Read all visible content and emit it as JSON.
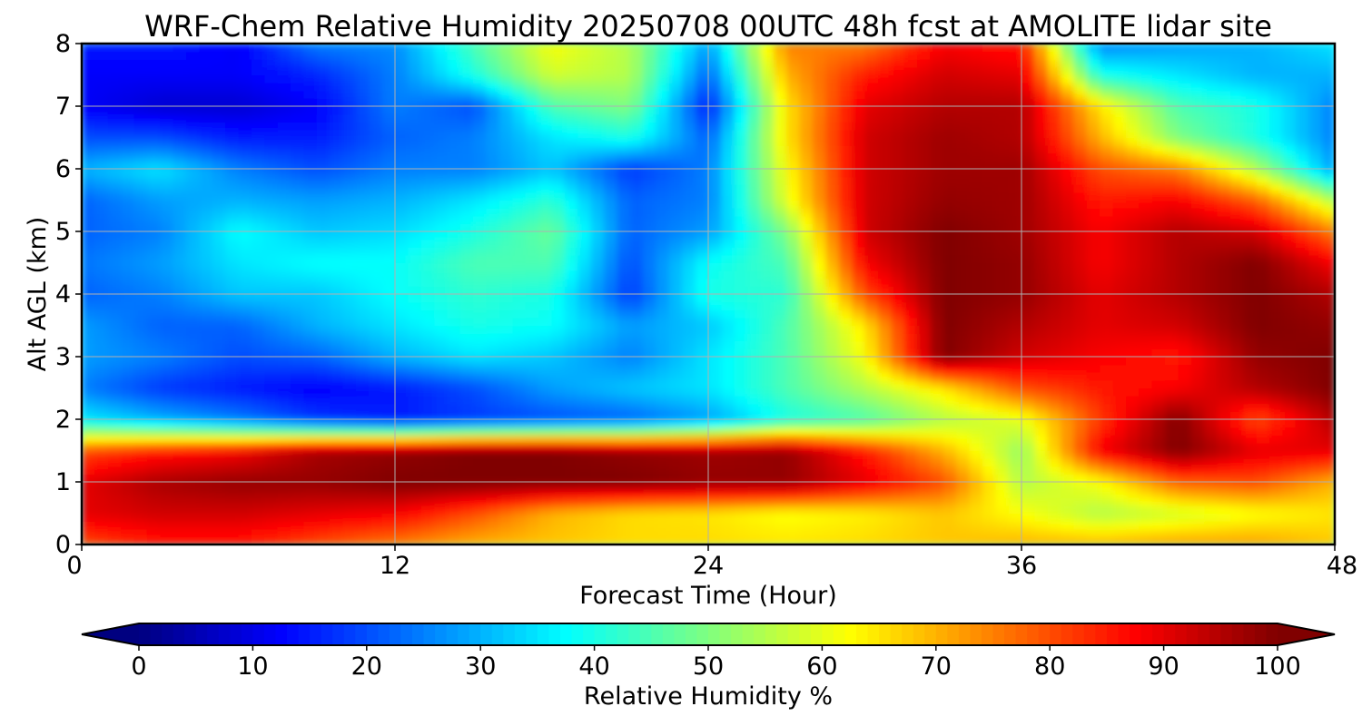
{
  "chart_data": {
    "type": "heatmap",
    "title": "WRF-Chem Relative Humidity 20250708 00UTC 48h fcst at AMOLITE lidar site",
    "xlabel": "Forecast Time (Hour)",
    "ylabel": "Alt AGL (km)",
    "xlim": [
      0,
      48
    ],
    "ylim": [
      0,
      8
    ],
    "x_ticks": [
      "0",
      "12",
      "24",
      "36",
      "48"
    ],
    "y_ticks": [
      "0",
      "1",
      "2",
      "3",
      "4",
      "5",
      "6",
      "7",
      "8"
    ],
    "grid": true,
    "x": [
      0,
      3,
      6,
      9,
      12,
      15,
      18,
      21,
      24,
      27,
      30,
      33,
      36,
      39,
      42,
      45,
      48
    ],
    "y": [
      0,
      0.5,
      1,
      1.5,
      2,
      2.5,
      3,
      3.5,
      4,
      4.5,
      5,
      5.5,
      6,
      6.5,
      7,
      7.5,
      8
    ],
    "z": [
      [
        80,
        85,
        85,
        80,
        75,
        70,
        68,
        66,
        66,
        65,
        66,
        68,
        70,
        70,
        72,
        72,
        68
      ],
      [
        90,
        92,
        92,
        90,
        88,
        80,
        70,
        66,
        65,
        62,
        64,
        68,
        62,
        55,
        58,
        62,
        65
      ],
      [
        90,
        96,
        98,
        98,
        100,
        100,
        100,
        100,
        98,
        98,
        90,
        80,
        55,
        62,
        78,
        80,
        70
      ],
      [
        80,
        85,
        88,
        96,
        98,
        100,
        100,
        98,
        97,
        98,
        85,
        70,
        52,
        88,
        100,
        90,
        90
      ],
      [
        36,
        30,
        25,
        18,
        15,
        18,
        20,
        22,
        28,
        40,
        45,
        55,
        60,
        82,
        100,
        80,
        95
      ],
      [
        25,
        18,
        15,
        12,
        15,
        20,
        28,
        32,
        35,
        45,
        55,
        65,
        80,
        85,
        88,
        95,
        100
      ],
      [
        28,
        25,
        20,
        22,
        30,
        35,
        32,
        25,
        35,
        45,
        62,
        100,
        92,
        88,
        85,
        98,
        100
      ],
      [
        28,
        22,
        22,
        30,
        35,
        40,
        38,
        28,
        32,
        45,
        65,
        100,
        95,
        90,
        92,
        100,
        98
      ],
      [
        22,
        25,
        32,
        32,
        38,
        42,
        40,
        18,
        40,
        42,
        80,
        100,
        98,
        90,
        95,
        100,
        95
      ],
      [
        24,
        28,
        35,
        38,
        38,
        45,
        45,
        20,
        38,
        45,
        88,
        100,
        98,
        88,
        95,
        100,
        88
      ],
      [
        22,
        25,
        38,
        32,
        34,
        40,
        48,
        22,
        28,
        50,
        92,
        100,
        97,
        88,
        95,
        92,
        75
      ],
      [
        22,
        28,
        30,
        28,
        30,
        35,
        42,
        22,
        25,
        60,
        92,
        98,
        97,
        85,
        88,
        78,
        55
      ],
      [
        30,
        35,
        25,
        20,
        25,
        25,
        32,
        18,
        25,
        62,
        92,
        97,
        97,
        80,
        75,
        55,
        28
      ],
      [
        20,
        20,
        15,
        15,
        22,
        25,
        35,
        40,
        22,
        65,
        92,
        97,
        95,
        70,
        50,
        40,
        25
      ],
      [
        12,
        8,
        8,
        12,
        25,
        20,
        45,
        50,
        15,
        65,
        90,
        95,
        95,
        65,
        45,
        40,
        25
      ],
      [
        12,
        12,
        12,
        16,
        25,
        40,
        58,
        55,
        22,
        70,
        85,
        92,
        90,
        40,
        35,
        30,
        30
      ],
      [
        15,
        15,
        12,
        25,
        26,
        45,
        62,
        55,
        28,
        75,
        75,
        88,
        85,
        25,
        28,
        30,
        35
      ]
    ],
    "colorbar": {
      "label": "Relative Humidity %",
      "min": 0,
      "max": 100,
      "ticks": [
        "0",
        "10",
        "20",
        "30",
        "40",
        "50",
        "60",
        "70",
        "80",
        "90",
        "100"
      ],
      "colormap": "jet",
      "extend": "both"
    }
  }
}
